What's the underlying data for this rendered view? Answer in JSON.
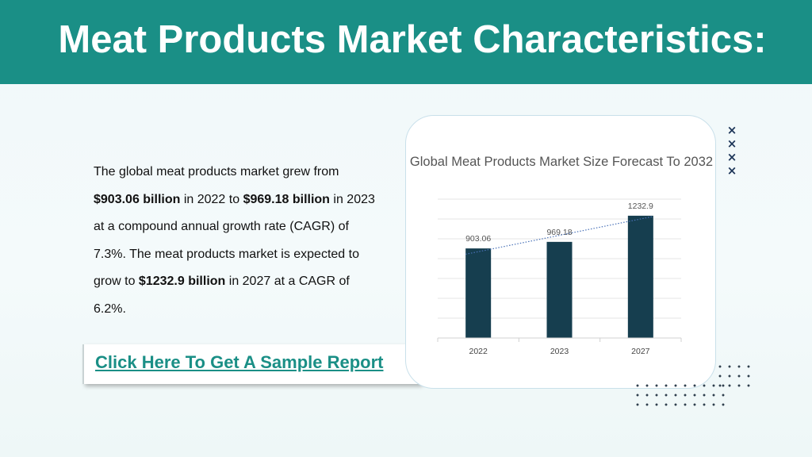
{
  "header": {
    "title": "Meat Products Market Characteristics:"
  },
  "description": {
    "segments": [
      {
        "text": "The global meat products market grew from ",
        "bold": false
      },
      {
        "text": "$903.06 billion",
        "bold": true
      },
      {
        "text": " in 2022 to ",
        "bold": false
      },
      {
        "text": "$969.18 billion",
        "bold": true
      },
      {
        "text": " in 2023 at a compound annual growth rate (CAGR) of 7.3%. The meat products market is expected to grow to ",
        "bold": false
      },
      {
        "text": "$1232.9 billion",
        "bold": true
      },
      {
        "text": " in 2027 at a CAGR of 6.2%.",
        "bold": false
      }
    ]
  },
  "cta": {
    "label": "Click Here To Get A Sample Report"
  },
  "decor": {
    "x_mark": "×"
  },
  "colors": {
    "header": "#1a8f86",
    "bar": "#163e4f",
    "link": "#1a8f86",
    "trendline": "#4a72b8"
  },
  "chart_data": {
    "type": "bar",
    "title": "Global Meat Products Market Size Forecast To 2032",
    "categories": [
      "2022",
      "2023",
      "2027"
    ],
    "values": [
      903.06,
      969.18,
      1232.9
    ],
    "data_labels": [
      "903.06",
      "969.18",
      "1232.9"
    ],
    "ylim": [
      0,
      1400
    ],
    "grid": true,
    "legend": false,
    "trendline": "linear, dotted"
  }
}
